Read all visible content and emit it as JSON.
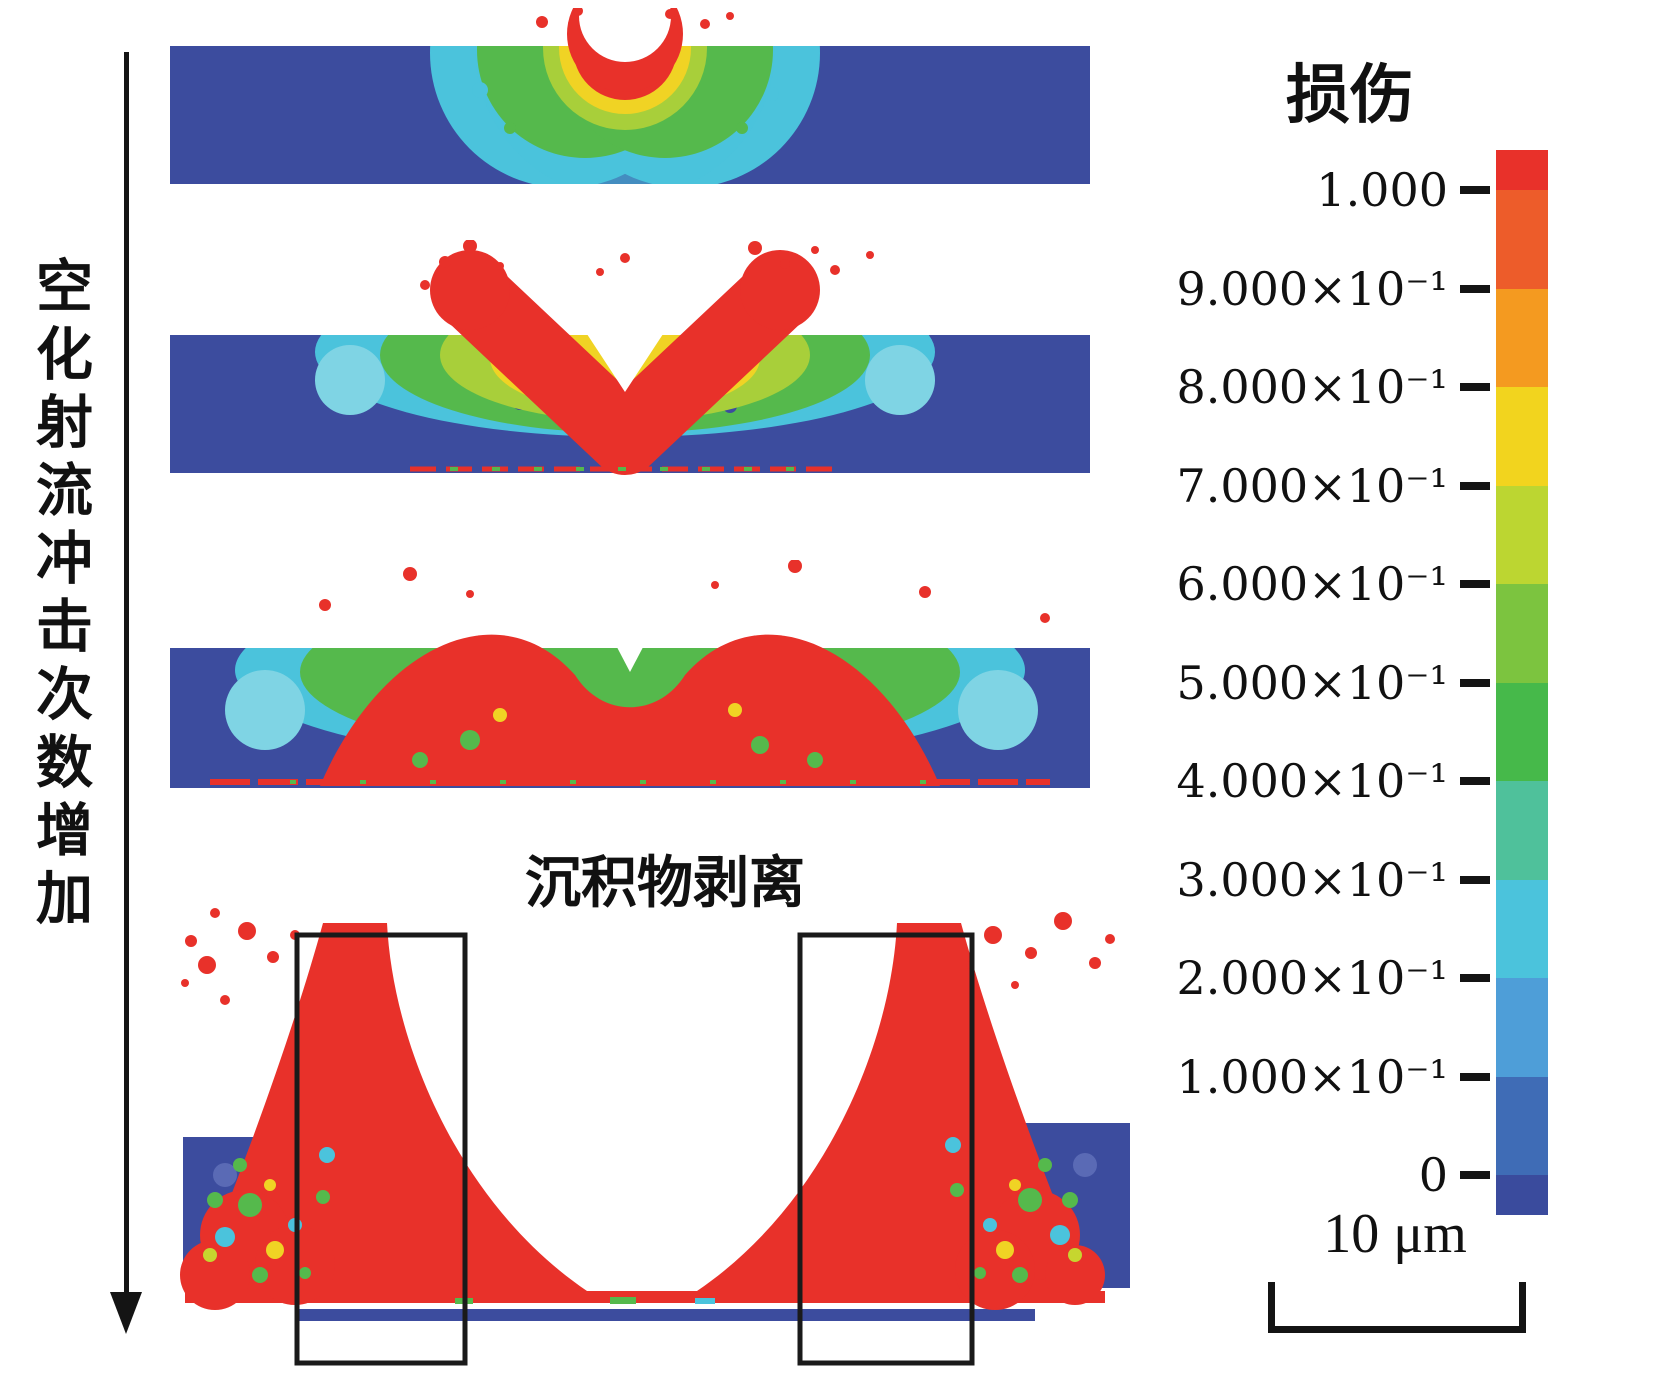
{
  "left_axis": {
    "label": "空化射流冲击次数增加"
  },
  "panels": {
    "annotation": "沉积物剥离"
  },
  "colorbar": {
    "title": "损伤",
    "ticks": [
      "1.000",
      "9.000×10⁻¹",
      "8.000×10⁻¹",
      "7.000×10⁻¹",
      "6.000×10⁻¹",
      "5.000×10⁻¹",
      "4.000×10⁻¹",
      "3.000×10⁻¹",
      "2.000×10⁻¹",
      "1.000×10⁻¹",
      "0"
    ],
    "colors": [
      "#e8312a",
      "#ed5c2a",
      "#f49a20",
      "#f2d41e",
      "#bcd631",
      "#7cc43f",
      "#46b94a",
      "#4fc19b",
      "#4bc3dc",
      "#4e9ed8",
      "#3f6cb6",
      "#3a4b9d"
    ]
  },
  "scale_bar": {
    "label": "10 μm"
  },
  "chart_data": {
    "type": "heatmap",
    "title": "损伤",
    "quantity": "damage",
    "value_range": [
      0,
      1
    ],
    "legend_ticks": [
      1.0,
      0.9,
      0.8,
      0.7,
      0.6,
      0.5,
      0.4,
      0.3,
      0.2,
      0.1,
      0
    ],
    "legend_colors": [
      "#e8312a",
      "#ed5c2a",
      "#f49a20",
      "#f2d41e",
      "#bcd631",
      "#7cc43f",
      "#46b94a",
      "#4fc19b",
      "#4bc3dc",
      "#4e9ed8",
      "#3f6cb6",
      "#3a4b9d"
    ],
    "sequence_axis": "空化射流冲击次数增加",
    "num_stages": 4,
    "annotations": [
      "沉积物剥离"
    ],
    "scale_bar": "10 μm",
    "legend_position": "right"
  }
}
